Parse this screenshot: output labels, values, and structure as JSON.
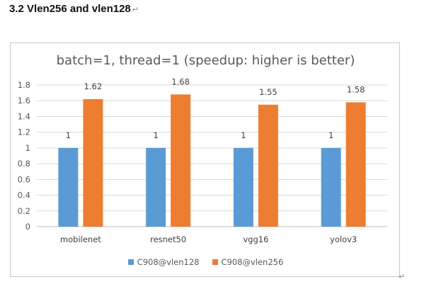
{
  "document": {
    "heading": "3.2 Vlen256 and vlen128",
    "paragraph_mark": "↵"
  },
  "chart_data": {
    "type": "bar",
    "title": "batch=1, thread=1 (speedup: higher is better)",
    "categories": [
      "mobilenet",
      "resnet50",
      "vgg16",
      "yolov3"
    ],
    "series": [
      {
        "name": "C908@vlen128",
        "values": [
          1,
          1,
          1,
          1
        ],
        "labels": [
          "1",
          "1",
          "1",
          "1"
        ],
        "color": "#5b9bd5"
      },
      {
        "name": "C908@vlen256",
        "values": [
          1.62,
          1.68,
          1.55,
          1.58
        ],
        "labels": [
          "1.62",
          "1.68",
          "1.55",
          "1.58"
        ],
        "color": "#ed7d31"
      }
    ],
    "ylim": [
      0,
      1.8
    ],
    "yticks": [
      "0",
      "0.2",
      "0.4",
      "0.6",
      "0.8",
      "1",
      "1.2",
      "1.4",
      "1.6",
      "1.8"
    ],
    "grid": true,
    "legend_position": "bottom"
  }
}
